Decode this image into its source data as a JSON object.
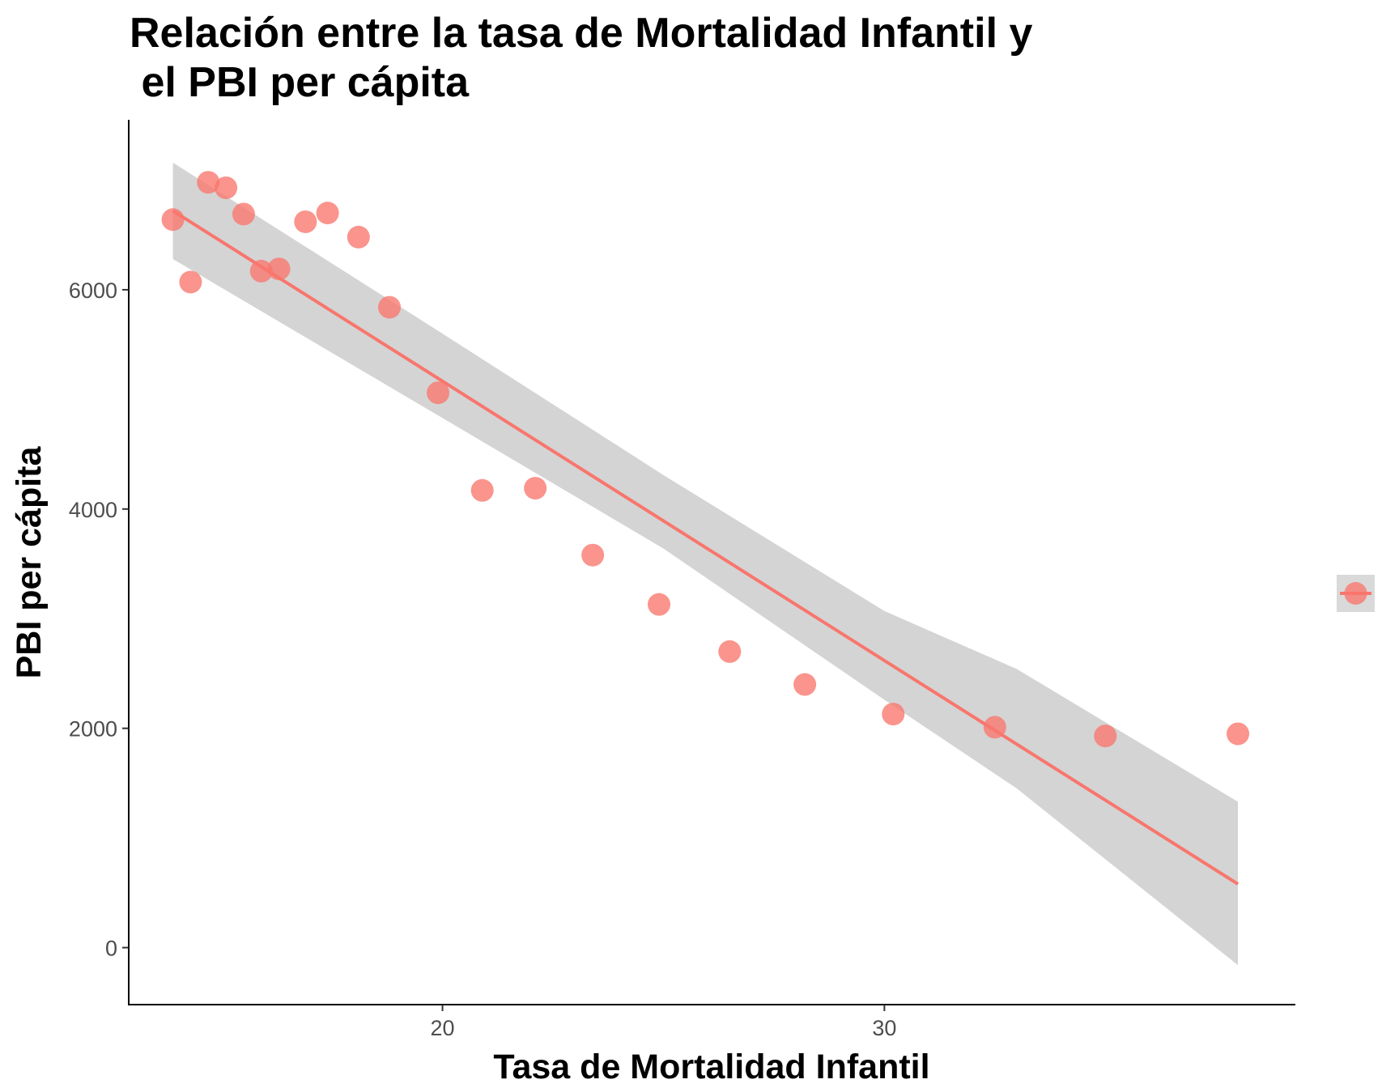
{
  "chart_data": {
    "type": "scatter",
    "title_lines": [
      "Relación entre la tasa de Mortalidad Infantil y",
      " el PBI per cápita"
    ],
    "xlabel": "Tasa de Mortalidad Infantil",
    "ylabel": "PBI per cápita",
    "xlim": [
      12.9,
      39.3
    ],
    "ylim": [
      -520,
      7550
    ],
    "x_ticks": [
      20,
      30
    ],
    "x_tick_labels": [
      "20",
      "30"
    ],
    "y_ticks": [
      0,
      2000,
      4000,
      6000
    ],
    "y_tick_labels": [
      "0",
      "2000",
      "4000",
      "6000"
    ],
    "grid": false,
    "legend_position": "right",
    "points": [
      {
        "x": 13.9,
        "y": 6640
      },
      {
        "x": 14.3,
        "y": 6070
      },
      {
        "x": 14.7,
        "y": 6980
      },
      {
        "x": 15.1,
        "y": 6930
      },
      {
        "x": 15.5,
        "y": 6690
      },
      {
        "x": 15.9,
        "y": 6170
      },
      {
        "x": 16.3,
        "y": 6190
      },
      {
        "x": 16.9,
        "y": 6620
      },
      {
        "x": 17.4,
        "y": 6700
      },
      {
        "x": 18.1,
        "y": 6480
      },
      {
        "x": 18.8,
        "y": 5840
      },
      {
        "x": 19.9,
        "y": 5060
      },
      {
        "x": 20.9,
        "y": 4170
      },
      {
        "x": 22.1,
        "y": 4190
      },
      {
        "x": 23.4,
        "y": 3580
      },
      {
        "x": 24.9,
        "y": 3130
      },
      {
        "x": 26.5,
        "y": 2700
      },
      {
        "x": 28.2,
        "y": 2400
      },
      {
        "x": 30.2,
        "y": 2130
      },
      {
        "x": 32.5,
        "y": 2010
      },
      {
        "x": 35.0,
        "y": 1930
      },
      {
        "x": 38.0,
        "y": 1950
      }
    ],
    "fit_line": [
      {
        "x": 13.9,
        "y": 6720
      },
      {
        "x": 38.0,
        "y": 580
      }
    ],
    "confidence_band": {
      "x": [
        13.9,
        20.0,
        25.0,
        30.0,
        33.0,
        38.0
      ],
      "lower": [
        6280,
        4830,
        3640,
        2260,
        1450,
        -160
      ],
      "upper": [
        7160,
        5600,
        4310,
        3070,
        2540,
        1330
      ]
    },
    "colors": {
      "points": "#f8766d",
      "line": "#f8766d",
      "band": "#d4d4d4",
      "legend_key_bg": "#d9d9d9"
    }
  }
}
